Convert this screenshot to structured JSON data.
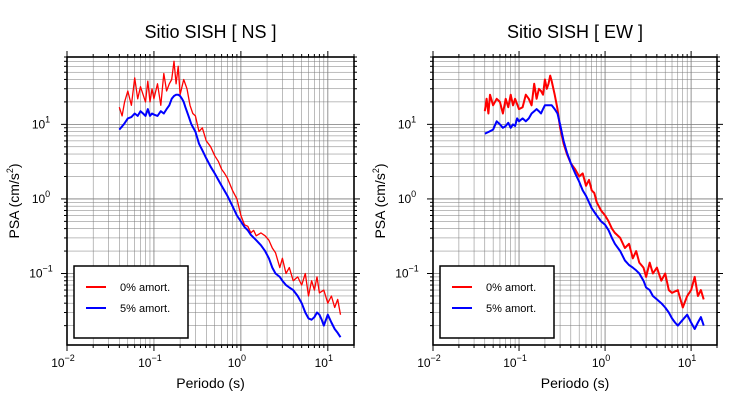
{
  "chart_data": [
    {
      "type": "line",
      "title": "Sitio SISH [ NS ]",
      "xlabel": "Periodo (s)",
      "ylabel_main": "PSA (cm/s",
      "ylabel_sup": "2",
      "ylabel_close": ")",
      "xscale": "log",
      "yscale": "log",
      "xlim": [
        0.01,
        20
      ],
      "ylim": [
        0.011,
        80
      ],
      "grid": true,
      "legend_position": "lower-left",
      "x_ticks": [
        {
          "base": "10",
          "exp": "−2"
        },
        {
          "base": "10",
          "exp": "−1"
        },
        {
          "base": "10",
          "exp": "0"
        },
        {
          "base": "10",
          "exp": "1"
        }
      ],
      "y_ticks": [
        {
          "base": "10",
          "exp": "−1"
        },
        {
          "base": "10",
          "exp": "0"
        },
        {
          "base": "10",
          "exp": "1"
        }
      ],
      "series": [
        {
          "name": "0% amort.",
          "color": "#ff0000",
          "x": [
            0.04,
            0.043,
            0.046,
            0.05,
            0.055,
            0.06,
            0.065,
            0.07,
            0.075,
            0.08,
            0.085,
            0.09,
            0.095,
            0.1,
            0.11,
            0.12,
            0.13,
            0.14,
            0.15,
            0.16,
            0.17,
            0.18,
            0.19,
            0.2,
            0.22,
            0.24,
            0.26,
            0.28,
            0.3,
            0.33,
            0.36,
            0.4,
            0.45,
            0.5,
            0.55,
            0.6,
            0.65,
            0.7,
            0.8,
            0.9,
            1.0,
            1.1,
            1.2,
            1.3,
            1.4,
            1.5,
            1.7,
            1.9,
            2.1,
            2.3,
            2.5,
            2.8,
            3.0,
            3.3,
            3.6,
            4.0,
            4.5,
            5.0,
            5.5,
            6.0,
            6.5,
            7.0,
            7.5,
            8.0,
            9.0,
            10.0,
            11.0,
            12.0,
            13.0,
            14.0
          ],
          "y": [
            17,
            13,
            20,
            28,
            18,
            42,
            22,
            32,
            25,
            20,
            38,
            20,
            30,
            22,
            35,
            18,
            48,
            28,
            35,
            40,
            70,
            35,
            60,
            25,
            40,
            30,
            18,
            14,
            13,
            8,
            9,
            6,
            5,
            3.8,
            3.2,
            2.5,
            2.2,
            1.9,
            1.3,
            1.0,
            0.6,
            0.45,
            0.43,
            0.35,
            0.38,
            0.32,
            0.35,
            0.32,
            0.28,
            0.22,
            0.19,
            0.12,
            0.16,
            0.1,
            0.12,
            0.08,
            0.09,
            0.07,
            0.1,
            0.05,
            0.08,
            0.06,
            0.09,
            0.055,
            0.06,
            0.04,
            0.05,
            0.035,
            0.045,
            0.028
          ]
        },
        {
          "name": "5% amort.",
          "color": "#0000ff",
          "x": [
            0.04,
            0.045,
            0.05,
            0.055,
            0.06,
            0.065,
            0.07,
            0.075,
            0.08,
            0.085,
            0.09,
            0.095,
            0.1,
            0.11,
            0.12,
            0.13,
            0.14,
            0.15,
            0.16,
            0.17,
            0.18,
            0.19,
            0.2,
            0.21,
            0.22,
            0.23,
            0.25,
            0.27,
            0.3,
            0.33,
            0.36,
            0.4,
            0.45,
            0.5,
            0.55,
            0.6,
            0.7,
            0.8,
            0.9,
            1.0,
            1.1,
            1.2,
            1.3,
            1.5,
            1.7,
            1.9,
            2.1,
            2.3,
            2.5,
            2.8,
            3.0,
            3.3,
            3.6,
            4.0,
            4.5,
            5.0,
            5.5,
            6.0,
            6.5,
            7.0,
            7.5,
            8.0,
            8.5,
            9.0,
            10.0,
            11.0,
            12.0,
            13.0,
            14.0
          ],
          "y": [
            8.5,
            10,
            12,
            12.5,
            14,
            13,
            15,
            14,
            13,
            16,
            13,
            14,
            13.5,
            13,
            15,
            14,
            16,
            18,
            22,
            24,
            25,
            25,
            24,
            22,
            20,
            17,
            13,
            10,
            8,
            5.5,
            4.5,
            3.5,
            2.7,
            2.2,
            1.8,
            1.5,
            1.1,
            0.8,
            0.6,
            0.5,
            0.42,
            0.38,
            0.33,
            0.28,
            0.24,
            0.2,
            0.16,
            0.12,
            0.1,
            0.09,
            0.08,
            0.07,
            0.065,
            0.06,
            0.05,
            0.04,
            0.03,
            0.025,
            0.024,
            0.026,
            0.03,
            0.028,
            0.024,
            0.02,
            0.028,
            0.022,
            0.018,
            0.016,
            0.014
          ]
        }
      ]
    },
    {
      "type": "line",
      "title": "Sitio SISH [ EW ]",
      "xlabel": "Periodo (s)",
      "ylabel_main": "PSA (cm/s",
      "ylabel_sup": "2",
      "ylabel_close": ")",
      "xscale": "log",
      "yscale": "log",
      "xlim": [
        0.01,
        20
      ],
      "ylim": [
        0.011,
        80
      ],
      "grid": true,
      "legend_position": "lower-left",
      "x_ticks": [
        {
          "base": "10",
          "exp": "−2"
        },
        {
          "base": "10",
          "exp": "−1"
        },
        {
          "base": "10",
          "exp": "0"
        },
        {
          "base": "10",
          "exp": "1"
        }
      ],
      "y_ticks": [
        {
          "base": "10",
          "exp": "−1"
        },
        {
          "base": "10",
          "exp": "0"
        },
        {
          "base": "10",
          "exp": "1"
        }
      ],
      "series": [
        {
          "name": "0% amort.",
          "color": "#ff0000",
          "x": [
            0.04,
            0.042,
            0.044,
            0.046,
            0.05,
            0.055,
            0.06,
            0.065,
            0.07,
            0.075,
            0.08,
            0.085,
            0.09,
            0.1,
            0.11,
            0.12,
            0.13,
            0.14,
            0.15,
            0.16,
            0.17,
            0.18,
            0.19,
            0.2,
            0.21,
            0.22,
            0.23,
            0.24,
            0.26,
            0.28,
            0.3,
            0.33,
            0.36,
            0.4,
            0.45,
            0.5,
            0.55,
            0.6,
            0.65,
            0.7,
            0.75,
            0.8,
            0.9,
            1.0,
            1.1,
            1.2,
            1.3,
            1.5,
            1.7,
            1.9,
            2.1,
            2.3,
            2.5,
            2.8,
            3.0,
            3.3,
            3.6,
            4.0,
            4.5,
            5.0,
            5.5,
            6.0,
            7.0,
            8.0,
            9.0,
            10.0,
            11.0,
            12.0,
            13.0,
            14.0
          ],
          "y": [
            15,
            22,
            14,
            25,
            18,
            22,
            20,
            14,
            22,
            17,
            25,
            18,
            22,
            16,
            17,
            25,
            22,
            18,
            35,
            22,
            30,
            28,
            25,
            40,
            30,
            35,
            45,
            38,
            25,
            16,
            9,
            5.5,
            4,
            3,
            2.5,
            2,
            2.2,
            1.5,
            1.8,
            1.3,
            1.2,
            0.9,
            0.7,
            0.6,
            0.5,
            0.4,
            0.35,
            0.3,
            0.22,
            0.25,
            0.16,
            0.2,
            0.14,
            0.12,
            0.09,
            0.14,
            0.1,
            0.12,
            0.08,
            0.1,
            0.06,
            0.055,
            0.06,
            0.035,
            0.05,
            0.06,
            0.09,
            0.05,
            0.06,
            0.045
          ]
        },
        {
          "name": "5% amort.",
          "color": "#0000ff",
          "x": [
            0.04,
            0.045,
            0.05,
            0.055,
            0.06,
            0.065,
            0.07,
            0.075,
            0.08,
            0.085,
            0.09,
            0.095,
            0.1,
            0.11,
            0.12,
            0.13,
            0.14,
            0.15,
            0.16,
            0.17,
            0.18,
            0.19,
            0.2,
            0.22,
            0.24,
            0.26,
            0.28,
            0.3,
            0.33,
            0.36,
            0.4,
            0.45,
            0.5,
            0.55,
            0.6,
            0.65,
            0.7,
            0.8,
            0.9,
            1.0,
            1.1,
            1.2,
            1.3,
            1.5,
            1.7,
            1.9,
            2.1,
            2.3,
            2.5,
            2.8,
            3.0,
            3.3,
            3.6,
            4.0,
            4.5,
            5.0,
            5.5,
            6.0,
            6.5,
            7.0,
            8.0,
            9.0,
            10.0,
            11.0,
            12.0,
            13.0,
            14.0
          ],
          "y": [
            7.5,
            8,
            8.5,
            11,
            10,
            9,
            9.5,
            10.5,
            9,
            10,
            9.5,
            12,
            11,
            12,
            11,
            12,
            14,
            15,
            16,
            15,
            14,
            16,
            18,
            18,
            18,
            16,
            14,
            10,
            6,
            4.2,
            3,
            2.2,
            1.7,
            1.3,
            1.1,
            0.9,
            0.75,
            0.6,
            0.5,
            0.45,
            0.38,
            0.3,
            0.25,
            0.2,
            0.15,
            0.13,
            0.12,
            0.11,
            0.1,
            0.08,
            0.065,
            0.06,
            0.05,
            0.045,
            0.04,
            0.035,
            0.03,
            0.025,
            0.022,
            0.02,
            0.024,
            0.028,
            0.022,
            0.018,
            0.022,
            0.026,
            0.02
          ]
        }
      ]
    }
  ]
}
